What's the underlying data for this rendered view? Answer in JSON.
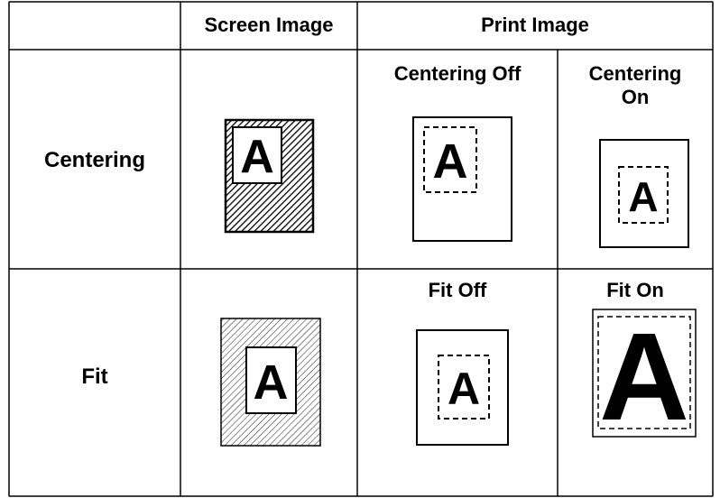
{
  "header": {
    "screen": "Screen Image",
    "print": "Print Image"
  },
  "rows": [
    {
      "label": "Centering",
      "screen_letter": "A",
      "print": [
        {
          "caption": "Centering Off",
          "letter": "A"
        },
        {
          "caption": "Centering On",
          "letter": "A"
        }
      ]
    },
    {
      "label": "Fit",
      "screen_letter": "A",
      "print": [
        {
          "caption": "Fit Off",
          "letter": "A"
        },
        {
          "caption": "Fit On",
          "letter": "A"
        }
      ]
    }
  ]
}
